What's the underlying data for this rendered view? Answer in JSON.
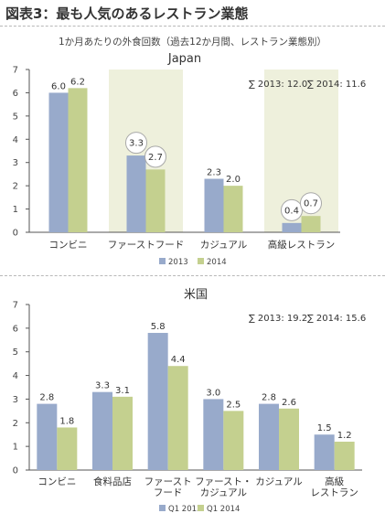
{
  "header": {
    "figure_title": "図表3：最も人気のあるレストラン業態",
    "subtitle": "1か月あたりの外食回数（過去12か月間、レストラン業態別）"
  },
  "colors": {
    "series1": "#98aacb",
    "series2": "#c4d08f",
    "highlight": "#eef0dc",
    "axis": "#555555"
  },
  "chart_data": [
    {
      "type": "bar",
      "title": "Japan",
      "ylim": [
        0,
        7
      ],
      "yticks": [
        0,
        1,
        2,
        3,
        4,
        5,
        6,
        7
      ],
      "categories": [
        [
          "コンビニ"
        ],
        [
          "ファーストフード"
        ],
        [
          "カジュアル"
        ],
        [
          "高級レストラン"
        ]
      ],
      "highlighted_categories": [
        1,
        3
      ],
      "circled_categories": [
        1,
        3
      ],
      "series": [
        {
          "name": "2013",
          "values": [
            6.0,
            3.3,
            2.3,
            0.4
          ]
        },
        {
          "name": "2014",
          "values": [
            6.2,
            2.7,
            2.0,
            0.7
          ]
        }
      ],
      "value_labels": [
        [
          "6.0",
          "3.3",
          "2.3",
          "0.4"
        ],
        [
          "6.2",
          "2.7",
          "2.0",
          "0.7"
        ]
      ],
      "totals": [
        "∑ 2013: 12.0",
        "∑ 2014: 11.6"
      ],
      "legend": "bottom"
    },
    {
      "type": "bar",
      "title": "米国",
      "ylim": [
        0,
        7
      ],
      "yticks": [
        0,
        1,
        2,
        3,
        4,
        5,
        6,
        7
      ],
      "categories": [
        [
          "コンビニ"
        ],
        [
          "食料品店"
        ],
        [
          "ファースト",
          "フード"
        ],
        [
          "ファースト・",
          "カジュアル"
        ],
        [
          "カジュアル"
        ],
        [
          "高級",
          "レストラン"
        ]
      ],
      "highlighted_categories": [],
      "circled_categories": [],
      "series": [
        {
          "name": "Q1 2013",
          "values": [
            2.8,
            3.3,
            5.8,
            3.0,
            2.8,
            1.5
          ]
        },
        {
          "name": "Q1 2014",
          "values": [
            1.8,
            3.1,
            4.4,
            2.5,
            2.6,
            1.2
          ]
        }
      ],
      "value_labels": [
        [
          "2.8",
          "3.3",
          "5.8",
          "3.0",
          "2.8",
          "1.5"
        ],
        [
          "1.8",
          "3.1",
          "4.4",
          "2.5",
          "2.6",
          "1.2"
        ]
      ],
      "totals": [
        "∑ 2013: 19.2",
        "∑ 2014: 15.6"
      ],
      "legend": "bottom"
    }
  ]
}
